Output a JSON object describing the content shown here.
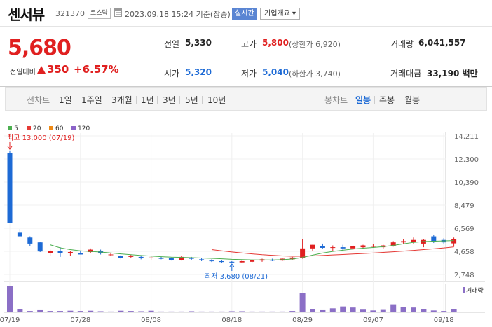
{
  "header": {
    "name": "센서뷰",
    "code": "321370",
    "market": "코스닥",
    "as_of": "2023.09.18 15:24 기준(장중)",
    "realtime_label": "실시간",
    "overview_label": "기업개요 ▾"
  },
  "quote": {
    "current_price": "5,680",
    "change_label": "전일대비",
    "change": "350",
    "change_pct": "+6.57%",
    "prev_label": "전일",
    "prev": "5,330",
    "open_label": "시가",
    "open": "5,320",
    "high_label": "고가",
    "high": "5,800",
    "upper_limit": "(상한가 6,920)",
    "low_label": "저가",
    "low": "5,040",
    "lower_limit": "(하한가 3,740)",
    "volume_label": "거래량",
    "volume": "6,041,557",
    "amount_label": "거래대금",
    "amount": "33,190 백만"
  },
  "periods": {
    "line_label": "선차트",
    "line_items": [
      "1일",
      "1주일",
      "3개월",
      "1년",
      "3년",
      "5년",
      "10년"
    ],
    "candle_label": "봉차트",
    "candle_items": [
      "일봉",
      "주봉",
      "월봉"
    ],
    "selected": "일봉"
  },
  "colors": {
    "up": "#e02020",
    "down": "#1d6ad5",
    "ma5": "#4caf50",
    "ma20": "#e53935",
    "ma60": "#ef8a16",
    "ma120": "#8b63c8",
    "volume": "#8b6fc6"
  },
  "chart_data": {
    "type": "candlestick",
    "legend": [
      "5",
      "20",
      "60",
      "120"
    ],
    "y_ticks": [
      "14,211",
      "12,300",
      "10,390",
      "8,479",
      "6,569",
      "4,658",
      "2,748"
    ],
    "ylim": [
      2748,
      14211
    ],
    "x_ticks": [
      {
        "label": "07/19",
        "index": 0
      },
      {
        "label": "07/28",
        "index": 7
      },
      {
        "label": "08/08",
        "index": 14
      },
      {
        "label": "08/18",
        "index": 22
      },
      {
        "label": "08/29",
        "index": 29
      },
      {
        "label": "09/07",
        "index": 36
      },
      {
        "label": "09/18",
        "index": 43
      }
    ],
    "high_note": "최고 13,000 (07/19)",
    "low_note": "최저 3,680 (08/21)",
    "volume_legend": "거래량",
    "candles": [
      {
        "o": 12800,
        "h": 13000,
        "l": 7000,
        "c": 7000
      },
      {
        "o": 6200,
        "h": 6500,
        "l": 5900,
        "c": 5900
      },
      {
        "o": 5800,
        "h": 5900,
        "l": 5100,
        "c": 5300
      },
      {
        "o": 5400,
        "h": 5450,
        "l": 4600,
        "c": 4650
      },
      {
        "o": 4500,
        "h": 4800,
        "l": 4300,
        "c": 4700
      },
      {
        "o": 4700,
        "h": 5000,
        "l": 4200,
        "c": 4500
      },
      {
        "o": 4500,
        "h": 4700,
        "l": 4300,
        "c": 4600
      },
      {
        "o": 4500,
        "h": 4700,
        "l": 4400,
        "c": 4400
      },
      {
        "o": 4600,
        "h": 4900,
        "l": 4500,
        "c": 4800
      },
      {
        "o": 4700,
        "h": 4800,
        "l": 4400,
        "c": 4500
      },
      {
        "o": 4400,
        "h": 4500,
        "l": 4300,
        "c": 4400
      },
      {
        "o": 4300,
        "h": 4400,
        "l": 4000,
        "c": 4100
      },
      {
        "o": 4200,
        "h": 4400,
        "l": 4100,
        "c": 4300
      },
      {
        "o": 4200,
        "h": 4300,
        "l": 4000,
        "c": 4100
      },
      {
        "o": 4100,
        "h": 4250,
        "l": 3950,
        "c": 4150
      },
      {
        "o": 4100,
        "h": 4200,
        "l": 4000,
        "c": 4050
      },
      {
        "o": 4100,
        "h": 4150,
        "l": 3900,
        "c": 3950
      },
      {
        "o": 3950,
        "h": 4300,
        "l": 3900,
        "c": 4200
      },
      {
        "o": 4100,
        "h": 4200,
        "l": 3950,
        "c": 4050
      },
      {
        "o": 4000,
        "h": 4100,
        "l": 3850,
        "c": 3950
      },
      {
        "o": 3900,
        "h": 4000,
        "l": 3780,
        "c": 3850
      },
      {
        "o": 3850,
        "h": 3950,
        "l": 3700,
        "c": 3780
      },
      {
        "o": 3800,
        "h": 3850,
        "l": 3680,
        "c": 3740
      },
      {
        "o": 3750,
        "h": 3900,
        "l": 3700,
        "c": 3850
      },
      {
        "o": 3800,
        "h": 4000,
        "l": 3750,
        "c": 3950
      },
      {
        "o": 3900,
        "h": 4050,
        "l": 3800,
        "c": 4000
      },
      {
        "o": 3950,
        "h": 4050,
        "l": 3850,
        "c": 3900
      },
      {
        "o": 3900,
        "h": 4100,
        "l": 3850,
        "c": 4050
      },
      {
        "o": 4000,
        "h": 4200,
        "l": 3950,
        "c": 4150
      },
      {
        "o": 4100,
        "h": 5700,
        "l": 4050,
        "c": 4900
      },
      {
        "o": 4900,
        "h": 5200,
        "l": 4700,
        "c": 5200
      },
      {
        "o": 5100,
        "h": 5300,
        "l": 4900,
        "c": 4950
      },
      {
        "o": 4950,
        "h": 5150,
        "l": 4700,
        "c": 5000
      },
      {
        "o": 5000,
        "h": 5200,
        "l": 4750,
        "c": 4900
      },
      {
        "o": 4900,
        "h": 5150,
        "l": 4800,
        "c": 5100
      },
      {
        "o": 5000,
        "h": 5200,
        "l": 4900,
        "c": 5150
      },
      {
        "o": 5050,
        "h": 5250,
        "l": 4950,
        "c": 5100
      },
      {
        "o": 5000,
        "h": 5200,
        "l": 4900,
        "c": 5150
      },
      {
        "o": 5100,
        "h": 5500,
        "l": 5050,
        "c": 5400
      },
      {
        "o": 5400,
        "h": 5700,
        "l": 5250,
        "c": 5500
      },
      {
        "o": 5400,
        "h": 5800,
        "l": 5300,
        "c": 5600
      },
      {
        "o": 5300,
        "h": 5700,
        "l": 5000,
        "c": 5600
      },
      {
        "o": 5900,
        "h": 6050,
        "l": 5350,
        "c": 5450
      },
      {
        "o": 5600,
        "h": 5750,
        "l": 5300,
        "c": 5400
      },
      {
        "o": 5320,
        "h": 5800,
        "l": 5040,
        "c": 5680
      }
    ],
    "ma5": [
      null,
      null,
      null,
      null,
      5200,
      4950,
      4800,
      4700,
      4650,
      4600,
      4530,
      4450,
      4380,
      4320,
      4270,
      4220,
      4180,
      4160,
      4140,
      4110,
      4080,
      4040,
      4000,
      3980,
      3960,
      3950,
      3950,
      3970,
      4020,
      4150,
      4350,
      4520,
      4650,
      4750,
      4850,
      4920,
      4980,
      5050,
      5150,
      5280,
      5400,
      5470,
      5500,
      5520,
      5550
    ],
    "ma20": [
      null,
      null,
      null,
      null,
      null,
      null,
      null,
      null,
      null,
      null,
      null,
      null,
      null,
      null,
      null,
      null,
      null,
      null,
      null,
      null,
      4800,
      4700,
      4610,
      4530,
      4450,
      4380,
      4330,
      4280,
      4250,
      4260,
      4280,
      4320,
      4360,
      4400,
      4440,
      4480,
      4520,
      4570,
      4620,
      4680,
      4740,
      4800,
      4870,
      4940,
      5030
    ],
    "volume_max": 1,
    "volumes": [
      1.0,
      0.12,
      0.05,
      0.08,
      0.05,
      0.05,
      0.06,
      0.05,
      0.06,
      0.04,
      0.03,
      0.06,
      0.05,
      0.04,
      0.06,
      0.03,
      0.03,
      0.03,
      0.04,
      0.03,
      0.03,
      0.03,
      0.04,
      0.04,
      0.03,
      0.03,
      0.03,
      0.03,
      0.05,
      0.72,
      0.13,
      0.08,
      0.15,
      0.22,
      0.18,
      0.1,
      0.07,
      0.09,
      0.3,
      0.2,
      0.18,
      0.12,
      0.07,
      0.05,
      0.13
    ]
  }
}
